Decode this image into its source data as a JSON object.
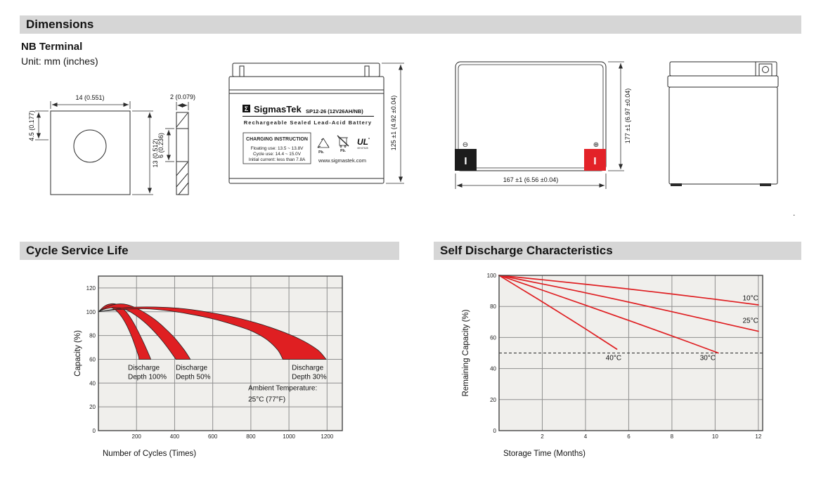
{
  "sections": {
    "dimensions": "Dimensions",
    "cycle": "Cycle Service Life",
    "self_discharge": "Self Discharge Characteristics"
  },
  "dimensions_block": {
    "subtitle": "NB Terminal",
    "unit": "Unit: mm (inches)",
    "terminal_front": {
      "width": "14 (0.551)",
      "offset": "4.5 (0.177)",
      "height": "13 (0.512)"
    },
    "terminal_side": {
      "thickness": "2 (0.079)",
      "hole_height": "6 (0.236)"
    },
    "battery_front": {
      "brand_symbol": "Σ",
      "brand": "SigmasTek",
      "model": "SP12-26 (12V26AH/NB)",
      "subtitle": "Rechargeable Sealed Lead-Acid Battery",
      "charging_title": "CHARGING INSTRUCTION",
      "charging_lines": [
        "Floating use: 13.5 ~ 13.8V",
        "Cycle use: 14.4 ~ 15.0V",
        "Initial current: less than 7.8A"
      ],
      "pb_recycle": "Pb.",
      "pb_bin": "Pb.",
      "ul_code": "MH47628",
      "website": "www.sigmastek.com",
      "height_dim": "125 ±1 (4.92 ±0.04)"
    },
    "battery_top": {
      "minus": "⊖",
      "plus": "⊕",
      "terminal_mark": "I",
      "negative_color": "#1c1c1c",
      "positive_color": "#e32228",
      "width_dim": "167 ±1 (6.56 ±0.04)",
      "height_dim": "177 ±1 (6.97 ±0.04)"
    },
    "stray_period": "."
  },
  "palette": {
    "red": "#df1f22",
    "plot_bg": "#f0efec",
    "grid": "#8f8f8f",
    "plot_border": "#454545"
  },
  "chart_data": [
    {
      "type": "area",
      "title": "Cycle Service Life",
      "xlabel": "Number of Cycles (Times)",
      "ylabel": "Capacity (%)",
      "xlim": [
        0,
        1280
      ],
      "ylim": [
        0,
        130
      ],
      "xticks": [
        200,
        400,
        600,
        800,
        1000,
        1200
      ],
      "yticks": [
        0,
        20,
        40,
        60,
        80,
        100,
        120
      ],
      "grid": true,
      "bands": [
        {
          "name": "Discharge Depth 100%",
          "upper": [
            [
              0,
              100
            ],
            [
              30,
              104.5
            ],
            [
              60,
              106.5
            ],
            [
              90,
              106.5
            ],
            [
              120,
              104
            ],
            [
              150,
              99
            ],
            [
              180,
              92
            ],
            [
              210,
              83
            ],
            [
              240,
              73
            ],
            [
              265,
              64
            ],
            [
              275,
              60
            ]
          ],
          "lower": [
            [
              0,
              100
            ],
            [
              25,
              102.5
            ],
            [
              50,
              103.5
            ],
            [
              75,
              103
            ],
            [
              100,
              100
            ],
            [
              125,
              95
            ],
            [
              150,
              88
            ],
            [
              175,
              79
            ],
            [
              195,
              70
            ],
            [
              210,
              63
            ],
            [
              213,
              60
            ]
          ]
        },
        {
          "name": "Discharge Depth 50%",
          "upper": [
            [
              0,
              100
            ],
            [
              50,
              104.5
            ],
            [
              100,
              106.5
            ],
            [
              150,
              106
            ],
            [
              200,
              103
            ],
            [
              250,
              98.5
            ],
            [
              300,
              93
            ],
            [
              350,
              86
            ],
            [
              400,
              78
            ],
            [
              450,
              68
            ],
            [
              483,
              60
            ]
          ],
          "lower": [
            [
              0,
              100
            ],
            [
              40,
              102.5
            ],
            [
              80,
              103.5
            ],
            [
              120,
              103
            ],
            [
              160,
              100.5
            ],
            [
              200,
              96.5
            ],
            [
              240,
              91.5
            ],
            [
              280,
              85.5
            ],
            [
              320,
              78.5
            ],
            [
              360,
              70.5
            ],
            [
              407,
              60
            ]
          ]
        },
        {
          "name": "Discharge Depth 30%",
          "upper": [
            [
              0,
              100
            ],
            [
              150,
              103.5
            ],
            [
              300,
              104
            ],
            [
              450,
              102.5
            ],
            [
              600,
              99
            ],
            [
              750,
              94
            ],
            [
              900,
              87
            ],
            [
              1050,
              77.5
            ],
            [
              1150,
              68
            ],
            [
              1195,
              60
            ]
          ],
          "lower": [
            [
              0,
              100
            ],
            [
              120,
              102
            ],
            [
              240,
              102.5
            ],
            [
              360,
              101
            ],
            [
              480,
              98
            ],
            [
              600,
              94
            ],
            [
              700,
              89.5
            ],
            [
              800,
              84
            ],
            [
              880,
              77
            ],
            [
              940,
              68
            ],
            [
              968,
              60
            ]
          ]
        }
      ],
      "annotations": [
        {
          "lines": [
            "Discharge",
            "Depth 100%"
          ],
          "x": 155,
          "y": 51,
          "line_h": 13
        },
        {
          "lines": [
            "Discharge",
            "Depth 50%"
          ],
          "x": 406,
          "y": 51,
          "line_h": 13
        },
        {
          "lines": [
            "Discharge",
            "Depth 30%"
          ],
          "x": 1015,
          "y": 51,
          "line_h": 13
        },
        {
          "lines": [
            "Ambient Temperature:",
            "25°C (77°F)"
          ],
          "x": 786,
          "y": 34,
          "line_h": 16
        }
      ]
    },
    {
      "type": "line",
      "title": "Self Discharge Characteristics",
      "xlabel": "Storage Time (Months)",
      "ylabel": "Remaining Capacity (%)",
      "xlim": [
        0,
        12.2
      ],
      "ylim": [
        0,
        100
      ],
      "xticks": [
        2,
        4,
        6,
        8,
        10,
        12
      ],
      "yticks": [
        0,
        20,
        40,
        60,
        80,
        100
      ],
      "grid": true,
      "series": [
        {
          "name": "10°C",
          "points": [
            [
              0,
              100
            ],
            [
              2,
              97.2
            ],
            [
              4,
              94.3
            ],
            [
              6,
              91.2
            ],
            [
              8,
              88
            ],
            [
              10,
              84.6
            ],
            [
              12,
              81
            ]
          ]
        },
        {
          "name": "25°C",
          "points": [
            [
              0,
              100
            ],
            [
              2,
              94.5
            ],
            [
              4,
              88.8
            ],
            [
              6,
              82.8
            ],
            [
              8,
              76.6
            ],
            [
              10,
              70.3
            ],
            [
              12,
              64
            ]
          ]
        },
        {
          "name": "30°C",
          "points": [
            [
              0,
              100
            ],
            [
              2,
              90.5
            ],
            [
              4,
              80.8
            ],
            [
              6,
              71
            ],
            [
              8,
              61
            ],
            [
              10.15,
              50
            ]
          ]
        },
        {
          "name": "40°C",
          "points": [
            [
              0,
              100
            ],
            [
              1,
              91.5
            ],
            [
              2,
              83
            ],
            [
              3,
              74.3
            ],
            [
              4,
              65.5
            ],
            [
              5.45,
              52.5
            ]
          ]
        }
      ],
      "reference_line": {
        "y": 50,
        "style": "dashed"
      },
      "labels": [
        {
          "text": "10°C",
          "x": 12,
          "y": 84,
          "anchor": "end"
        },
        {
          "text": "25°C",
          "x": 12,
          "y": 69.5,
          "anchor": "end"
        },
        {
          "text": "40°C",
          "x": 5.3,
          "y": 45.5,
          "anchor": "middle"
        },
        {
          "text": "30°C",
          "x": 9.66,
          "y": 45.5,
          "anchor": "middle"
        }
      ]
    }
  ]
}
